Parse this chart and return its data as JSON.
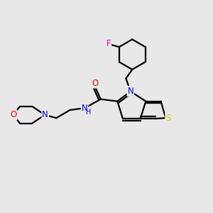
{
  "bg_color": "#e8e8e8",
  "line_color": "#000000",
  "bond_width": 1.6,
  "atom_colors": {
    "N": "#0000ff",
    "O": "#ff0000",
    "S": "#cccc00",
    "F": "#ff00aa",
    "C": "#000000",
    "H": "#000000"
  },
  "font_size": 8.5,
  "figsize": [
    3.0,
    3.0
  ],
  "dpi": 100
}
